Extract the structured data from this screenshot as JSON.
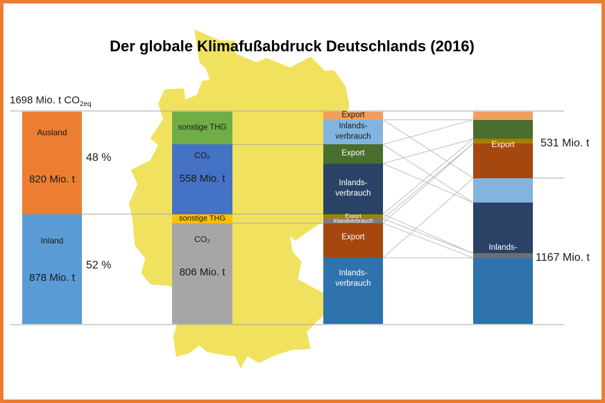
{
  "title": "Der globale Klimafußabdruck Deutschlands (2016)",
  "annotations": {
    "total_prefix": "1698 Mio. t CO",
    "total_sub": "2eq",
    "share_ausland": "48 %",
    "share_inland": "52 %",
    "export_total": "531 Mio. t",
    "inlandsverbrauch_total": "1167 Mio. t"
  },
  "colors": {
    "frame_orange": "#ED7D31",
    "orange": "#ED7D31",
    "blue_mid": "#5B9BD5",
    "green": "#70AD47",
    "blue_royal": "#4472C4",
    "yellow": "#FFC000",
    "gray_light": "#A6A6A6",
    "orange_light": "#F0A05C",
    "blue_light": "#82B4E0",
    "green_dark": "#4A6E2D",
    "navy": "#2A4266",
    "olive": "#A57E00",
    "gray_mid": "#7E7E7E",
    "gray_dark": "#6E6E6E",
    "brown": "#A5480F",
    "steel_blue": "#2E72AE",
    "map_yellow": "#F0E25F",
    "gridline": "#A6A6A6",
    "connector": "#BDBDBD",
    "text_dark": "#1A1A1A",
    "text_white": "#FFFFFF"
  },
  "chart_data": {
    "type": "bar",
    "subtype": "stacked-flow",
    "title": "Der globale Klimafußabdruck Deutschlands (2016)",
    "unit": "Mio. t CO2eq",
    "total": 1698,
    "axis_note": "all four stacked bars share one scale, 1698 Mio. t CO2eq total, gridlines on",
    "bars": [
      {
        "id": "herkunft",
        "segments": [
          {
            "id": "ausland",
            "value": 820,
            "color": "orange",
            "text": "dark",
            "labels": [
              {
                "lines": [
                  "Ausland"
                ],
                "frac": 0.2,
                "size": 12
              },
              {
                "lines": [
                  "820 Mio. t"
                ],
                "frac": 0.66,
                "size": 15
              }
            ]
          },
          {
            "id": "inland",
            "value": 878,
            "color": "blue_mid",
            "text": "dark",
            "labels": [
              {
                "lines": [
                  "Inland"
                ],
                "frac": 0.24,
                "size": 12
              },
              {
                "lines": [
                  "878 Mio. t"
                ],
                "frac": 0.58,
                "size": 15
              }
            ]
          }
        ]
      },
      {
        "id": "gas",
        "segments": [
          {
            "id": "ausland_thg",
            "value": 262,
            "color": "green",
            "text": "dark",
            "labels": [
              {
                "lines": [
                  "sonstige THG"
                ],
                "frac": 0.5,
                "size": 11.5
              }
            ]
          },
          {
            "id": "ausland_co2",
            "value": 558,
            "color": "blue_royal",
            "text": "dark",
            "labels": [
              {
                "lines": [
                  "CO₂"
                ],
                "frac": 0.16,
                "size": 12
              },
              {
                "lines": [
                  "558 Mio. t"
                ],
                "frac": 0.5,
                "size": 15
              }
            ]
          },
          {
            "id": "inland_thg",
            "value": 72,
            "color": "yellow",
            "text": "dark",
            "labels": [
              {
                "lines": [
                  "sonstige THG"
                ],
                "frac": 0.5,
                "size": 11
              }
            ]
          },
          {
            "id": "inland_co2",
            "value": 806,
            "color": "gray_light",
            "text": "dark",
            "labels": [
              {
                "lines": [
                  "CO₂"
                ],
                "frac": 0.16,
                "size": 12
              },
              {
                "lines": [
                  "806 Mio. t"
                ],
                "frac": 0.49,
                "size": 15
              }
            ]
          }
        ]
      },
      {
        "id": "verwendung",
        "segments": [
          {
            "id": "exp_ausland_thg",
            "value": 65,
            "color": "orange_light",
            "text": "dark",
            "labels": [
              {
                "lines": [
                  "Export"
                ],
                "frac": 0.5,
                "size": 11.5
              }
            ]
          },
          {
            "id": "inl_ausland_thg",
            "value": 197,
            "color": "blue_light",
            "text": "dark",
            "labels": [
              {
                "lines": [
                  "Inlands-",
                  "verbrauch"
                ],
                "frac": 0.5,
                "size": 11.5
              }
            ]
          },
          {
            "id": "exp_ausland_co2",
            "value": 152,
            "color": "green_dark",
            "text": "white",
            "labels": [
              {
                "lines": [
                  "Export"
                ],
                "frac": 0.5,
                "size": 11.5
              }
            ]
          },
          {
            "id": "inl_ausland_co2",
            "value": 406,
            "color": "navy",
            "text": "white",
            "labels": [
              {
                "lines": [
                  "Inlands-",
                  "verbrauch"
                ],
                "frac": 0.5,
                "size": 11.5
              }
            ]
          },
          {
            "id": "exp_inland_thg",
            "value": 37,
            "color": "olive",
            "text": "white",
            "labels": [
              {
                "lines": [
                  "Export"
                ],
                "frac": 0.5,
                "size": 8
              }
            ]
          },
          {
            "id": "inl_inland_thg",
            "value": 35,
            "color": "gray_mid",
            "text": "white",
            "labels": [
              {
                "lines": [
                  "Inlandverbrauch"
                ],
                "frac": 0.5,
                "size": 8
              }
            ]
          },
          {
            "id": "exp_inland_co2",
            "value": 277,
            "color": "brown",
            "text": "white",
            "labels": [
              {
                "lines": [
                  "Export"
                ],
                "frac": 0.42,
                "size": 11.5
              }
            ]
          },
          {
            "id": "inl_inland_co2",
            "value": 529,
            "color": "steel_blue",
            "text": "white",
            "labels": [
              {
                "lines": [
                  "Inlands-",
                  "verbrauch"
                ],
                "frac": 0.32,
                "size": 11.5
              }
            ]
          }
        ]
      },
      {
        "id": "bilanz",
        "segments": [
          {
            "id": "exp_ausland_thg",
            "value": 65,
            "color": "orange_light",
            "text": "dark",
            "labels": []
          },
          {
            "id": "exp_ausland_co2",
            "value": 152,
            "color": "green_dark",
            "text": "white",
            "labels": []
          },
          {
            "id": "exp_inland_thg",
            "value": 37,
            "color": "olive",
            "text": "white",
            "labels": []
          },
          {
            "id": "exp_inland_co2",
            "value": 277,
            "color": "brown",
            "text": "white",
            "labels": [
              {
                "lines": [
                  "Export"
                ],
                "frac": 0.05,
                "size": 11.5
              }
            ]
          },
          {
            "id": "inl_ausland_thg",
            "value": 197,
            "color": "blue_light",
            "text": "dark",
            "labels": []
          },
          {
            "id": "inl_ausland_co2",
            "value": 406,
            "color": "navy",
            "text": "white",
            "labels": [
              {
                "lines": [
                  "Inlands-",
                  "verbrauch"
                ],
                "frac": 1.0,
                "size": 11.5
              }
            ]
          },
          {
            "id": "inl_inland_thg",
            "value": 35,
            "color": "gray_dark",
            "text": "white",
            "labels": []
          },
          {
            "id": "inl_inland_co2",
            "value": 529,
            "color": "steel_blue",
            "text": "white",
            "labels": []
          }
        ]
      }
    ],
    "groups": {
      "export_total": 531,
      "inlandsverbrauch_total": 1167,
      "ausland_total": 820,
      "inland_total": 878,
      "ausland_share": "48 %",
      "inland_share": "52 %"
    },
    "connectors": {
      "from_bar": "verwendung",
      "to_bar": "bilanz"
    }
  }
}
